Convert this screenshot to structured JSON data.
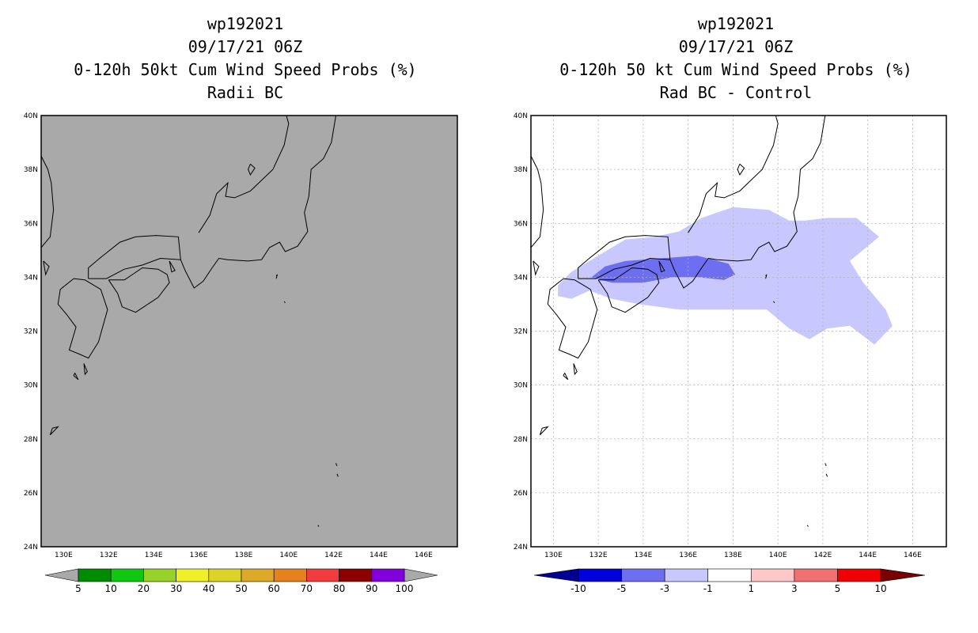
{
  "panels": [
    {
      "title": [
        "wp192021",
        "09/17/21 06Z",
        "0-120h 50kt Cum Wind Speed Probs (%)",
        "Radii BC"
      ]
    },
    {
      "title": [
        "wp192021",
        "09/17/21 06Z",
        "0-120h 50 kt Cum Wind Speed Probs (%)",
        "Rad BC - Control"
      ]
    }
  ],
  "chart_data": [
    {
      "type": "heatmap",
      "title": "0-120h 50kt Cum Wind Speed Probs (%)",
      "subtitle": "Radii BC",
      "storm": "wp192021",
      "time": "09/17/21 06Z",
      "xlim": [
        129,
        147.5
      ],
      "ylim": [
        24,
        40
      ],
      "xticks": [
        130,
        132,
        134,
        136,
        138,
        140,
        142,
        144,
        146
      ],
      "yticks": [
        24,
        26,
        28,
        30,
        32,
        34,
        36,
        38,
        40
      ],
      "xtick_labels": [
        "130E",
        "132E",
        "134E",
        "136E",
        "138E",
        "140E",
        "142E",
        "144E",
        "146E"
      ],
      "ytick_labels": [
        "24N",
        "26N",
        "28N",
        "30N",
        "32N",
        "34N",
        "36N",
        "38N",
        "40N"
      ],
      "grid": false,
      "field": "all values below 5% (shaded grey)",
      "background": "#a9a9a9",
      "colorbar": {
        "labels": [
          "5",
          "10",
          "20",
          "30",
          "40",
          "50",
          "60",
          "70",
          "80",
          "90",
          "100"
        ],
        "colors": [
          "#008c00",
          "#10c810",
          "#96d228",
          "#f0f028",
          "#dcd228",
          "#dcaa28",
          "#e6821e",
          "#f03c3c",
          "#8c0000",
          "#8200dc"
        ],
        "end_color": "#a9a9a9"
      }
    },
    {
      "type": "heatmap",
      "title": "0-120h 50 kt Cum Wind Speed Probs (%)",
      "subtitle": "Rad BC - Control",
      "storm": "wp192021",
      "time": "09/17/21 06Z",
      "xlim": [
        129,
        147.5
      ],
      "ylim": [
        24,
        40
      ],
      "xticks": [
        130,
        132,
        134,
        136,
        138,
        140,
        142,
        144,
        146
      ],
      "yticks": [
        24,
        26,
        28,
        30,
        32,
        34,
        36,
        38,
        40
      ],
      "xtick_labels": [
        "130E",
        "132E",
        "134E",
        "136E",
        "138E",
        "140E",
        "142E",
        "144E",
        "146E"
      ],
      "ytick_labels": [
        "24N",
        "26N",
        "28N",
        "30N",
        "32N",
        "34N",
        "36N",
        "38N",
        "40N"
      ],
      "grid": true,
      "regions": [
        {
          "level": "-3 to -1",
          "color": "#c8c8ff",
          "polygon": [
            [
              130.2,
              33.7
            ],
            [
              130.8,
              34.2
            ],
            [
              131.8,
              34.7
            ],
            [
              133.2,
              35.4
            ],
            [
              134.5,
              35.5
            ],
            [
              135.6,
              35.7
            ],
            [
              136.6,
              36.2
            ],
            [
              138,
              36.6
            ],
            [
              139.6,
              36.5
            ],
            [
              140.5,
              36.1
            ],
            [
              141.2,
              36.1
            ],
            [
              142.2,
              36.2
            ],
            [
              143.5,
              36.2
            ],
            [
              144.5,
              35.5
            ],
            [
              143.2,
              34.6
            ],
            [
              143.8,
              33.8
            ],
            [
              144.8,
              32.8
            ],
            [
              145.1,
              32.2
            ],
            [
              144.3,
              31.5
            ],
            [
              143.2,
              32.2
            ],
            [
              142.2,
              32.1
            ],
            [
              141.4,
              31.7
            ],
            [
              140.5,
              32.1
            ],
            [
              139.5,
              32.8
            ],
            [
              137.8,
              32.8
            ],
            [
              135.6,
              32.8
            ],
            [
              133.8,
              33
            ],
            [
              132.6,
              33.2
            ],
            [
              131.6,
              33.5
            ],
            [
              130.8,
              33.2
            ],
            [
              130.2,
              33.3
            ]
          ]
        },
        {
          "level": "-5 to -3",
          "color": "#6e6ef0",
          "polygon": [
            [
              131.7,
              34
            ],
            [
              132.3,
              34.4
            ],
            [
              133.2,
              34.6
            ],
            [
              134.8,
              34.7
            ],
            [
              136.4,
              34.8
            ],
            [
              137.8,
              34.5
            ],
            [
              138.1,
              34.1
            ],
            [
              137.6,
              33.9
            ],
            [
              136.5,
              34
            ],
            [
              135.3,
              34
            ],
            [
              134,
              33.8
            ],
            [
              132.6,
              33.8
            ]
          ]
        }
      ],
      "colorbar": {
        "labels": [
          "-10",
          "-5",
          "-3",
          "-1",
          "1",
          "3",
          "5",
          "10"
        ],
        "colors": [
          "#0000dc",
          "#6e6ef0",
          "#c8c8ff",
          "#ffffff",
          "#ffc8c8",
          "#f07070",
          "#f00000"
        ],
        "low_end_color": "#000096",
        "high_end_color": "#780000"
      }
    }
  ]
}
